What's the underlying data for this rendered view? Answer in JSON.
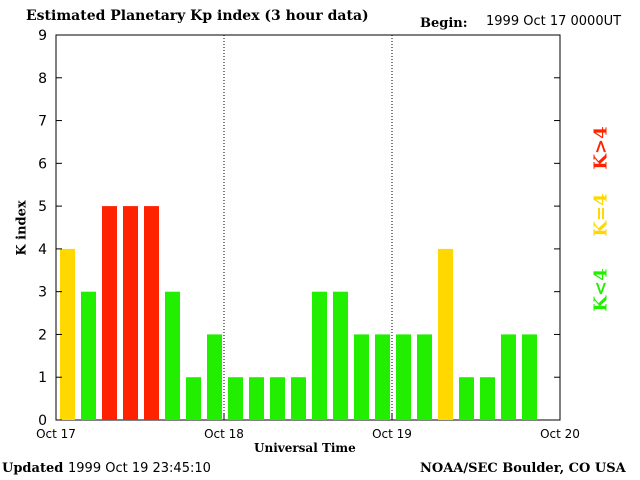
{
  "header": {
    "title": "Estimated Planetary Kp index (3 hour data)",
    "begin_label": "Begin:",
    "begin_value": "1999 Oct 17 0000UT"
  },
  "footer": {
    "updated_label": "Updated",
    "updated_value": "1999 Oct 19 23:45:10",
    "credit": "NOAA/SEC Boulder, CO USA"
  },
  "legend": [
    {
      "label": "K<4",
      "color": "#22ee00"
    },
    {
      "label": "K=4",
      "color": "#ffd800"
    },
    {
      "label": "K>4",
      "color": "#ff2200"
    }
  ],
  "chart_data": {
    "type": "bar",
    "title": "Estimated Planetary Kp index (3 hour data)",
    "xlabel": "Universal Time",
    "ylabel": "K index",
    "ylim": [
      0,
      9
    ],
    "yticks": [
      "0",
      "1",
      "2",
      "3",
      "4",
      "5",
      "6",
      "7",
      "8",
      "9"
    ],
    "xtick_labels": [
      "Oct 17",
      "Oct 18",
      "Oct 19",
      "Oct 20"
    ],
    "bars_per_day": 8,
    "values": [
      4,
      3,
      5,
      5,
      5,
      3,
      1,
      2,
      1,
      1,
      1,
      1,
      3,
      3,
      2,
      2,
      2,
      2,
      4,
      1,
      1,
      2,
      2
    ],
    "day_separators": "dotted",
    "colors": {
      "below": "#22ee00",
      "equal": "#ffd800",
      "above": "#ff2200"
    }
  }
}
